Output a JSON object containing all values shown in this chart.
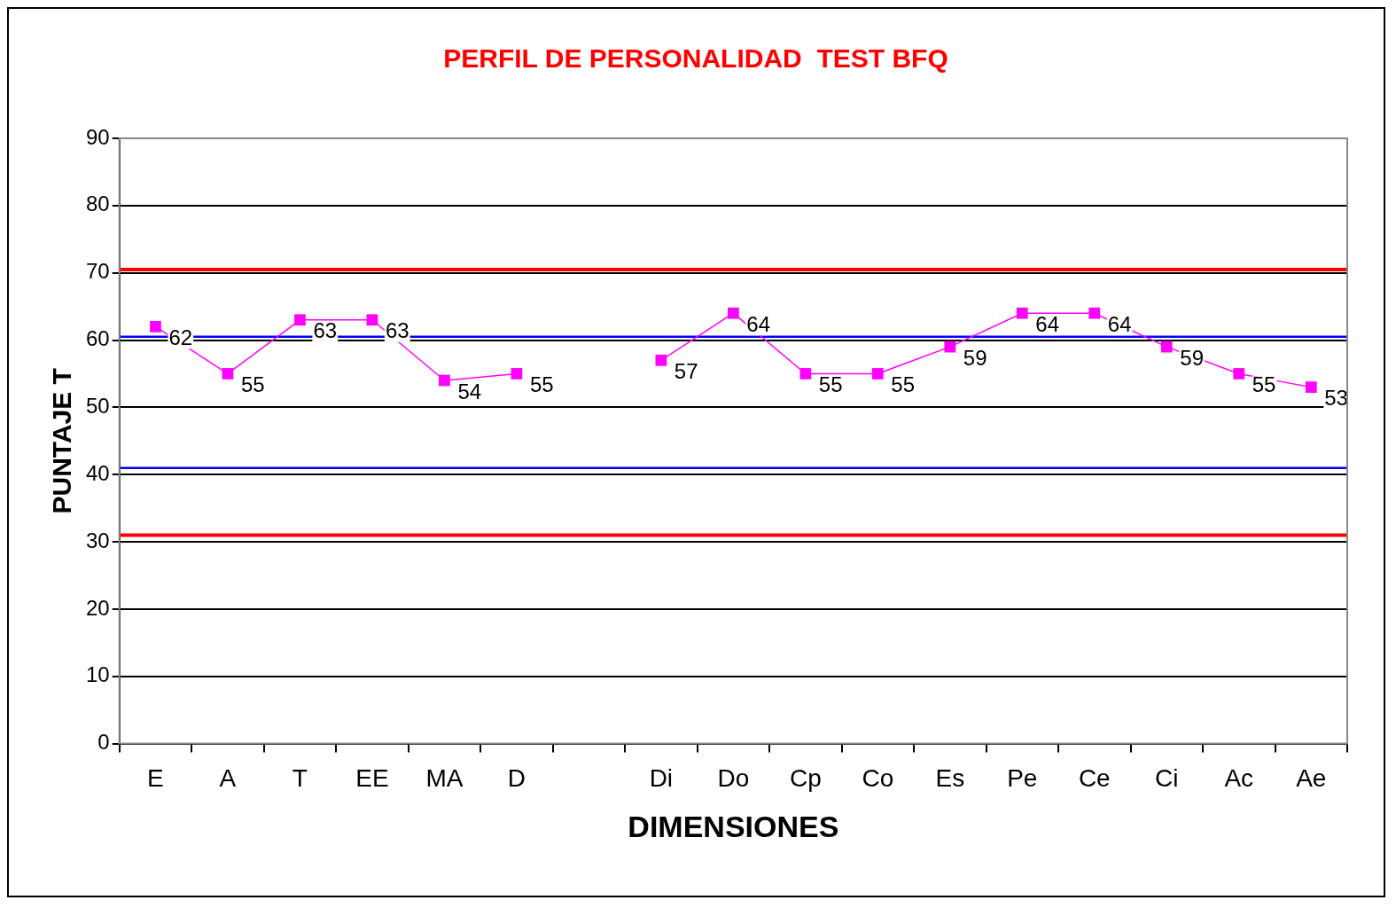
{
  "chart_data": {
    "type": "line",
    "title": "PERFIL DE PERSONALIDAD  TEST BFQ",
    "xlabel": "DIMENSIONES",
    "ylabel": "PUNTAJE T",
    "categories": [
      "E",
      "A",
      "T",
      "EE",
      "MA",
      "D",
      null,
      "Di",
      "Do",
      "Cp",
      "Co",
      "Es",
      "Pe",
      "Ce",
      "Ci",
      "Ac",
      "Ae"
    ],
    "series": [
      {
        "color": "#ff00ff",
        "values": [
          62,
          55,
          63,
          63,
          54,
          55,
          null,
          57,
          64,
          55,
          55,
          59,
          64,
          64,
          59,
          55,
          53
        ]
      }
    ],
    "ylim": [
      0,
      90
    ],
    "yticks": [
      0,
      10,
      20,
      30,
      40,
      50,
      60,
      70,
      80,
      90
    ],
    "grid": "y",
    "marker": "square",
    "line_style": "solid",
    "data_labels": true,
    "legend": false,
    "ref_lines": [
      {
        "axis": "y",
        "value": 70.5,
        "color": "#ff0000"
      },
      {
        "axis": "y",
        "value": 60.5,
        "color": "#0000ff"
      },
      {
        "axis": "y",
        "value": 41,
        "color": "#0000ff"
      },
      {
        "axis": "y",
        "value": 31,
        "color": "#ff0000"
      }
    ]
  }
}
